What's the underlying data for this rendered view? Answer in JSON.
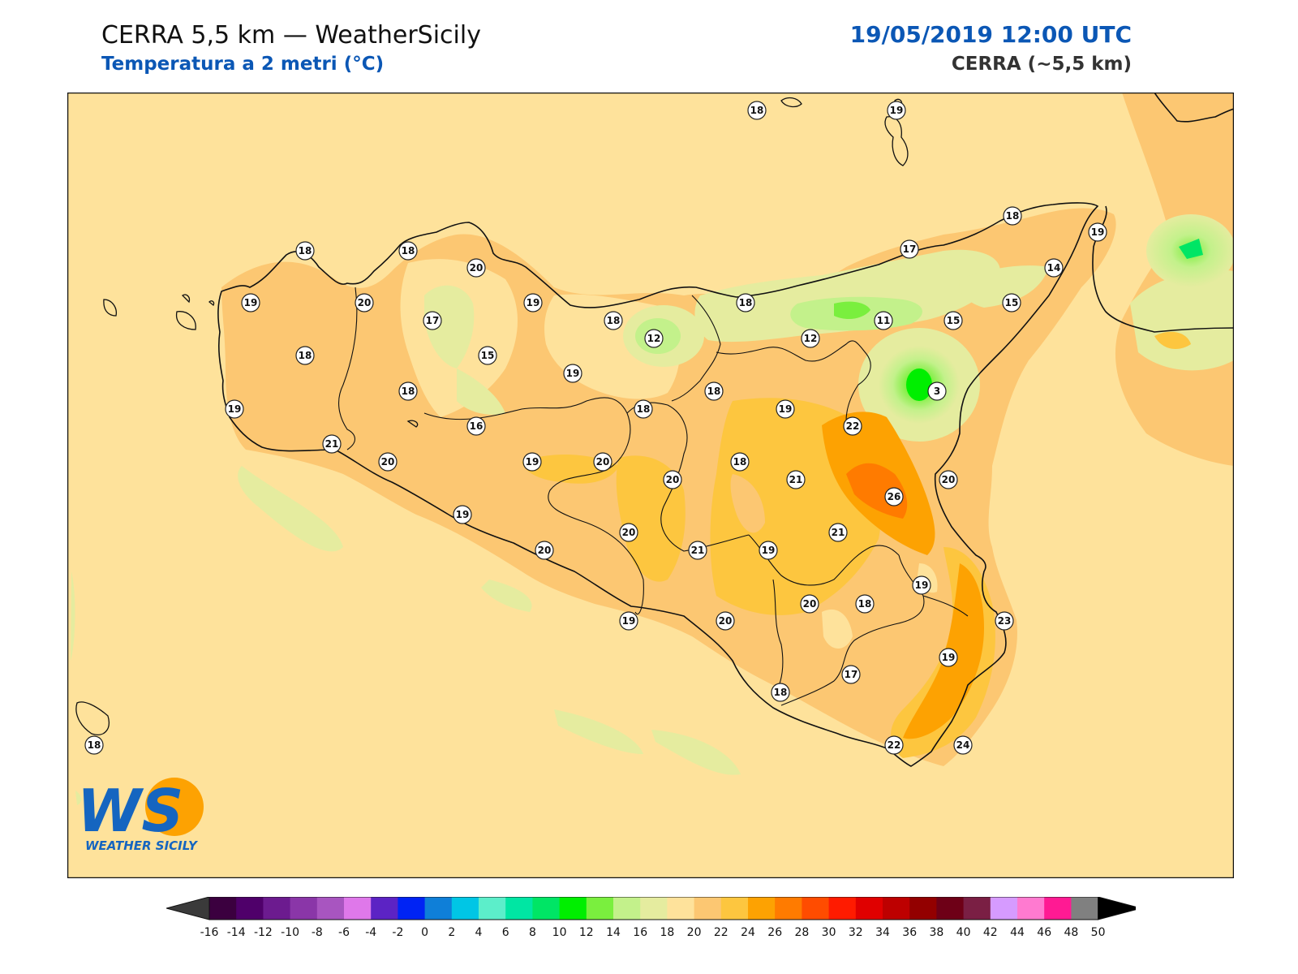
{
  "header": {
    "title": "CERRA 5,5 km — WeatherSicily",
    "subtitle": "Temperatura a 2 metri (°C)",
    "datetime": "19/05/2019 12:00 UTC",
    "model": "CERRA (~5,5 km)"
  },
  "logo": {
    "text": "WS",
    "name": "WEATHER SICILY"
  },
  "colors": {
    "background_field": "#fee29b",
    "accent_title": "#0b57b5"
  },
  "station_values": [
    {
      "id": "s1",
      "value": "18"
    },
    {
      "id": "s2",
      "value": "19"
    },
    {
      "id": "s3",
      "value": "18"
    },
    {
      "id": "s4",
      "value": "19"
    },
    {
      "id": "s5",
      "value": "18"
    },
    {
      "id": "s6",
      "value": "18"
    },
    {
      "id": "s7",
      "value": "20"
    },
    {
      "id": "s8",
      "value": "17"
    },
    {
      "id": "s9",
      "value": "14"
    },
    {
      "id": "s10",
      "value": "19"
    },
    {
      "id": "s11",
      "value": "20"
    },
    {
      "id": "s12",
      "value": "19"
    },
    {
      "id": "s13",
      "value": "18"
    },
    {
      "id": "s14",
      "value": "18"
    },
    {
      "id": "s15",
      "value": "11"
    },
    {
      "id": "s16",
      "value": "15"
    },
    {
      "id": "s17",
      "value": "15"
    },
    {
      "id": "s18",
      "value": "17"
    },
    {
      "id": "s19",
      "value": "12"
    },
    {
      "id": "s20",
      "value": "12"
    },
    {
      "id": "s21",
      "value": "18"
    },
    {
      "id": "s22",
      "value": "15"
    },
    {
      "id": "s23",
      "value": "19"
    },
    {
      "id": "s24",
      "value": "3"
    },
    {
      "id": "s25",
      "value": "19"
    },
    {
      "id": "s26",
      "value": "18"
    },
    {
      "id": "s27",
      "value": "18"
    },
    {
      "id": "s28",
      "value": "18"
    },
    {
      "id": "s29",
      "value": "19"
    },
    {
      "id": "s30",
      "value": "21"
    },
    {
      "id": "s31",
      "value": "16"
    },
    {
      "id": "s32",
      "value": "22"
    },
    {
      "id": "s33",
      "value": "20"
    },
    {
      "id": "s34",
      "value": "19"
    },
    {
      "id": "s35",
      "value": "20"
    },
    {
      "id": "s36",
      "value": "18"
    },
    {
      "id": "s37",
      "value": "20"
    },
    {
      "id": "s38",
      "value": "21"
    },
    {
      "id": "s39",
      "value": "26"
    },
    {
      "id": "s40",
      "value": "20"
    },
    {
      "id": "s41",
      "value": "19"
    },
    {
      "id": "s42",
      "value": "20"
    },
    {
      "id": "s43",
      "value": "20"
    },
    {
      "id": "s44",
      "value": "21"
    },
    {
      "id": "s45",
      "value": "21"
    },
    {
      "id": "s46",
      "value": "19"
    },
    {
      "id": "s47",
      "value": "19"
    },
    {
      "id": "s48",
      "value": "19"
    },
    {
      "id": "s49",
      "value": "20"
    },
    {
      "id": "s50",
      "value": "18"
    },
    {
      "id": "s51",
      "value": "20"
    },
    {
      "id": "s52",
      "value": "23"
    },
    {
      "id": "s53",
      "value": "19"
    },
    {
      "id": "s54",
      "value": "17"
    },
    {
      "id": "s55",
      "value": "18"
    },
    {
      "id": "s56",
      "value": "22"
    },
    {
      "id": "s57",
      "value": "24"
    },
    {
      "id": "s58",
      "value": "18"
    }
  ],
  "colorbar": {
    "ticks": [
      "-16",
      "-14",
      "-12",
      "-10",
      "-8",
      "-6",
      "-4",
      "-2",
      "0",
      "2",
      "4",
      "6",
      "8",
      "10",
      "12",
      "14",
      "16",
      "18",
      "20",
      "22",
      "24",
      "26",
      "28",
      "30",
      "32",
      "34",
      "36",
      "38",
      "40",
      "42",
      "44",
      "46",
      "48",
      "50"
    ],
    "colors": [
      "#3b003f",
      "#4f006a",
      "#6c1b8f",
      "#8a36a8",
      "#a855c0",
      "#df78ea",
      "#5c23c4",
      "#0023f4",
      "#0f7fd8",
      "#00c6e5",
      "#5ceeca",
      "#00e6a3",
      "#00e565",
      "#00ef00",
      "#7aef3e",
      "#c3f18b",
      "#e5ec9f",
      "#fee29b",
      "#fcc772",
      "#fdc63f",
      "#fda202",
      "#ff7b00",
      "#ff4c00",
      "#ff1b00",
      "#e00000",
      "#bd0000",
      "#930000",
      "#6e0017",
      "#7a1f44",
      "#d69bff",
      "#ff7ad0",
      "#ff1a93",
      "#808080",
      "#3a3a3a"
    ]
  }
}
